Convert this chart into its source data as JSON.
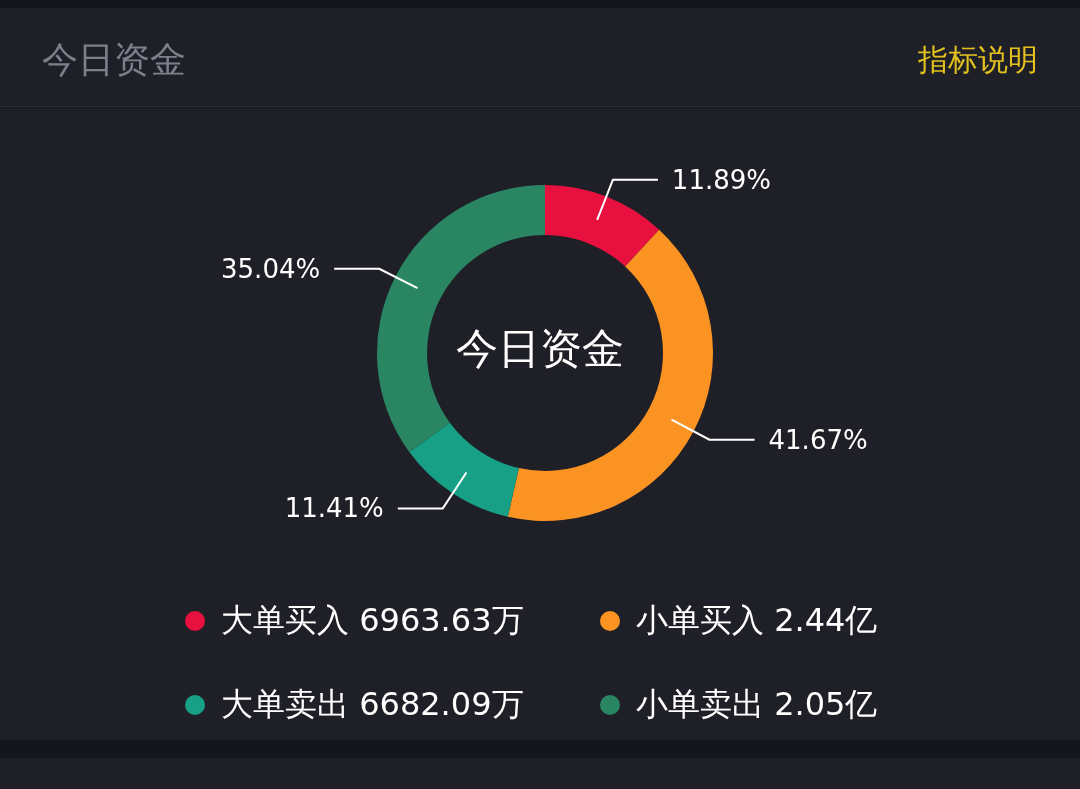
{
  "chart_data": {
    "type": "donut",
    "title": "今日资金",
    "annotations": [
      "指标说明",
      "今日资金"
    ],
    "categories": [
      "大单买入 6963.63万",
      "小单买入 2.44亿",
      "大单卖出 6682.09万",
      "小单卖出 2.05亿"
    ],
    "values": [
      11.89,
      41.67,
      11.41,
      35.04
    ],
    "value_labels": [
      "11.89%",
      "41.67%",
      "11.41%",
      "35.04%"
    ],
    "colors": [
      "#e8103f",
      "#fb9322",
      "#17a086",
      "#2a8562"
    ],
    "legend": "bottom"
  }
}
